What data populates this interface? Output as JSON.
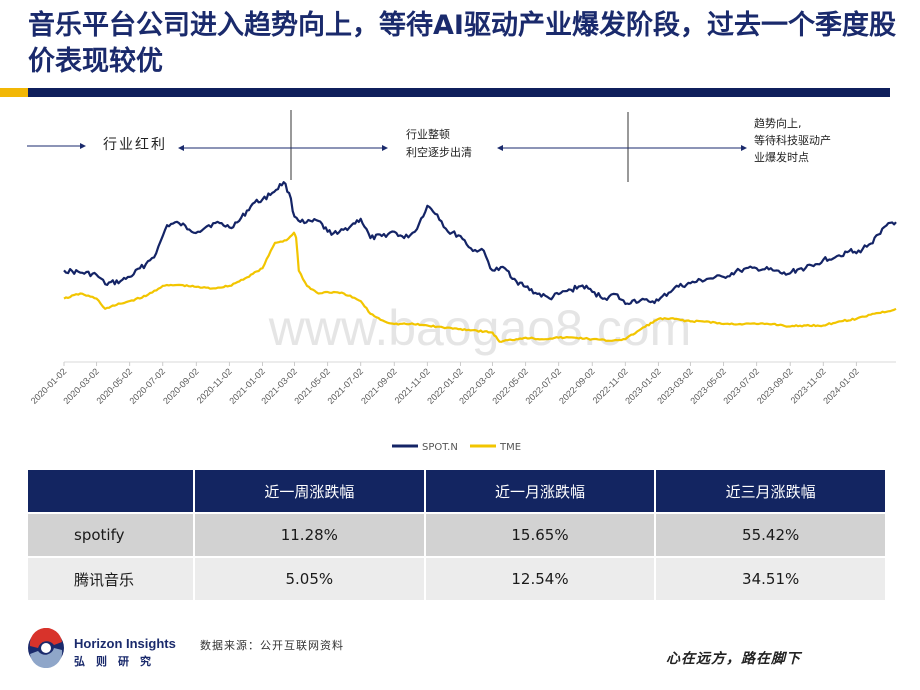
{
  "header": {
    "title": "音乐平台公司进入趋势向上，等待AI驱动产业爆发阶段，过去一个季度股价表现较优"
  },
  "chart_data": {
    "type": "line",
    "x_start": "2020-01-02",
    "x_end": "2024-03-15",
    "x_ticks": [
      "2020-01-02",
      "2020-03-02",
      "2020-05-02",
      "2020-07-02",
      "2020-09-02",
      "2020-11-02",
      "2021-01-02",
      "2021-03-02",
      "2021-05-02",
      "2021-07-02",
      "2021-09-02",
      "2021-11-02",
      "2022-01-02",
      "2022-03-02",
      "2022-05-02",
      "2022-07-02",
      "2022-09-02",
      "2022-11-02",
      "2023-01-02",
      "2023-03-02",
      "2023-05-02",
      "2023-07-02",
      "2023-09-02",
      "2023-11-02",
      "2024-01-02"
    ],
    "legend_position": "bottom",
    "grid": false,
    "y_axis_visible": false,
    "series": [
      {
        "name": "SPOT.N",
        "color": "#142466",
        "points": [
          [
            "2020-01-02",
            150
          ],
          [
            "2020-02-01",
            145
          ],
          [
            "2020-03-02",
            140
          ],
          [
            "2020-03-18",
            118
          ],
          [
            "2020-04-15",
            125
          ],
          [
            "2020-05-02",
            135
          ],
          [
            "2020-06-01",
            165
          ],
          [
            "2020-06-20",
            190
          ],
          [
            "2020-07-10",
            255
          ],
          [
            "2020-08-01",
            260
          ],
          [
            "2020-08-20",
            245
          ],
          [
            "2020-09-05",
            240
          ],
          [
            "2020-09-25",
            255
          ],
          [
            "2020-10-15",
            260
          ],
          [
            "2020-11-02",
            250
          ],
          [
            "2020-11-20",
            265
          ],
          [
            "2020-12-15",
            305
          ],
          [
            "2021-01-02",
            315
          ],
          [
            "2021-01-20",
            330
          ],
          [
            "2021-02-10",
            355
          ],
          [
            "2021-02-20",
            330
          ],
          [
            "2021-03-02",
            275
          ],
          [
            "2021-03-20",
            260
          ],
          [
            "2021-04-15",
            265
          ],
          [
            "2021-05-02",
            240
          ],
          [
            "2021-05-20",
            235
          ],
          [
            "2021-06-15",
            255
          ],
          [
            "2021-07-02",
            270
          ],
          [
            "2021-07-20",
            225
          ],
          [
            "2021-08-10",
            230
          ],
          [
            "2021-09-02",
            240
          ],
          [
            "2021-09-20",
            225
          ],
          [
            "2021-10-10",
            240
          ],
          [
            "2021-11-02",
            300
          ],
          [
            "2021-11-20",
            280
          ],
          [
            "2021-12-10",
            240
          ],
          [
            "2022-01-02",
            230
          ],
          [
            "2022-01-25",
            195
          ],
          [
            "2022-02-10",
            200
          ],
          [
            "2022-03-02",
            150
          ],
          [
            "2022-03-25",
            155
          ],
          [
            "2022-04-15",
            125
          ],
          [
            "2022-05-02",
            112
          ],
          [
            "2022-05-20",
            98
          ],
          [
            "2022-06-15",
            85
          ],
          [
            "2022-07-02",
            95
          ],
          [
            "2022-07-25",
            105
          ],
          [
            "2022-08-15",
            115
          ],
          [
            "2022-09-02",
            100
          ],
          [
            "2022-09-25",
            85
          ],
          [
            "2022-10-15",
            95
          ],
          [
            "2022-11-02",
            72
          ],
          [
            "2022-11-15",
            80
          ],
          [
            "2022-12-15",
            78
          ],
          [
            "2023-01-02",
            80
          ],
          [
            "2023-02-01",
            110
          ],
          [
            "2023-03-02",
            120
          ],
          [
            "2023-04-01",
            130
          ],
          [
            "2023-05-02",
            135
          ],
          [
            "2023-06-01",
            150
          ],
          [
            "2023-07-02",
            155
          ],
          [
            "2023-08-01",
            150
          ],
          [
            "2023-08-25",
            140
          ],
          [
            "2023-09-15",
            152
          ],
          [
            "2023-10-15",
            160
          ],
          [
            "2023-11-02",
            175
          ],
          [
            "2023-12-01",
            185
          ],
          [
            "2023-12-20",
            195
          ],
          [
            "2024-01-02",
            190
          ],
          [
            "2024-01-25",
            210
          ],
          [
            "2024-02-15",
            235
          ],
          [
            "2024-03-01",
            260
          ],
          [
            "2024-03-15",
            262
          ]
        ]
      },
      {
        "name": "TME",
        "color": "#f2c500",
        "points": [
          [
            "2020-01-02",
            12.5
          ],
          [
            "2020-02-01",
            13.5
          ],
          [
            "2020-03-02",
            12.5
          ],
          [
            "2020-03-18",
            10.5
          ],
          [
            "2020-04-15",
            11.5
          ],
          [
            "2020-05-02",
            12
          ],
          [
            "2020-06-01",
            13
          ],
          [
            "2020-07-02",
            15
          ],
          [
            "2020-08-01",
            15.2
          ],
          [
            "2020-09-02",
            14.8
          ],
          [
            "2020-10-01",
            14.5
          ],
          [
            "2020-11-02",
            15
          ],
          [
            "2020-12-01",
            16.5
          ],
          [
            "2021-01-02",
            18.5
          ],
          [
            "2021-01-25",
            23.5
          ],
          [
            "2021-02-15",
            24
          ],
          [
            "2021-03-01",
            25.5
          ],
          [
            "2021-03-05",
            24.5
          ],
          [
            "2021-03-10",
            18
          ],
          [
            "2021-03-25",
            15
          ],
          [
            "2021-04-15",
            13.5
          ],
          [
            "2021-05-02",
            13.8
          ],
          [
            "2021-06-01",
            13.5
          ],
          [
            "2021-07-02",
            12
          ],
          [
            "2021-07-20",
            9.5
          ],
          [
            "2021-08-15",
            8
          ],
          [
            "2021-09-02",
            7.5
          ],
          [
            "2021-10-01",
            7.5
          ],
          [
            "2021-11-02",
            7.2
          ],
          [
            "2021-12-01",
            6.8
          ],
          [
            "2022-01-02",
            6.5
          ],
          [
            "2022-02-01",
            6.2
          ],
          [
            "2022-03-02",
            5.8
          ],
          [
            "2022-03-15",
            4
          ],
          [
            "2022-04-15",
            4.5
          ],
          [
            "2022-05-02",
            4.8
          ],
          [
            "2022-06-01",
            4.5
          ],
          [
            "2022-07-02",
            4.8
          ],
          [
            "2022-08-01",
            4.8
          ],
          [
            "2022-09-02",
            4.5
          ],
          [
            "2022-10-01",
            4.2
          ],
          [
            "2022-11-02",
            4.5
          ],
          [
            "2022-12-01",
            6.5
          ],
          [
            "2023-01-02",
            8.5
          ],
          [
            "2023-02-01",
            8.5
          ],
          [
            "2023-03-02",
            8
          ],
          [
            "2023-04-01",
            8
          ],
          [
            "2023-05-02",
            7.5
          ],
          [
            "2023-06-01",
            7.5
          ],
          [
            "2023-07-02",
            7.5
          ],
          [
            "2023-08-01",
            7.5
          ],
          [
            "2023-09-02",
            7
          ],
          [
            "2023-10-01",
            7.2
          ],
          [
            "2023-11-02",
            7.2
          ],
          [
            "2023-12-01",
            8
          ],
          [
            "2024-01-02",
            8.5
          ],
          [
            "2024-02-01",
            9.5
          ],
          [
            "2024-03-01",
            10
          ],
          [
            "2024-03-15",
            10.5
          ]
        ]
      }
    ],
    "annotations": {
      "phase1": "行业红利",
      "phase2_line1": "行业整顿",
      "phase2_line2": "利空逐步出清",
      "phase3_line1": "趋势向上,",
      "phase3_line2": "等待科技驱动产",
      "phase3_line3": "业爆发时点"
    },
    "watermark": "www.baogao8.com"
  },
  "table": {
    "headers": [
      "",
      "近一周涨跌幅",
      "近一月涨跌幅",
      "近三月涨跌幅"
    ],
    "rows": [
      [
        "spotify",
        "11.28%",
        "15.65%",
        "55.42%"
      ],
      [
        "腾讯音乐",
        "5.05%",
        "12.54%",
        "34.51%"
      ]
    ]
  },
  "footer": {
    "brand_en": "Horizon Insights",
    "brand_cn": "弘则研究",
    "source": "数据来源：公开互联网资料",
    "slogan": "心在远方，路在脚下"
  },
  "colors": {
    "navy": "#132561",
    "gold": "#f2b705"
  }
}
